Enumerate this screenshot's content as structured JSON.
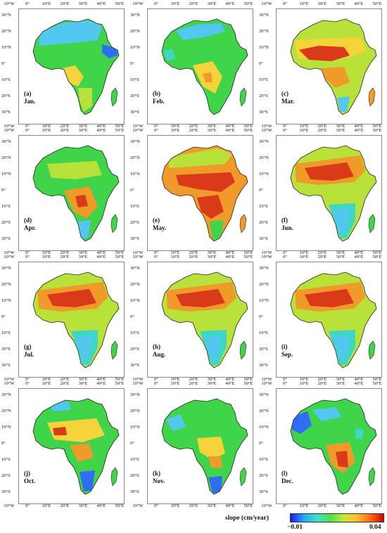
{
  "axes": {
    "lon_ticks": [
      "10°W",
      "0°",
      "10°E",
      "20°E",
      "30°E",
      "40°E",
      "50°E"
    ],
    "lat_ticks": [
      "30°N",
      "20°N",
      "10°N",
      "0°",
      "10°S",
      "20°S",
      "30°S"
    ]
  },
  "panels": [
    {
      "letter": "(a)",
      "month": "Jan.",
      "pattern": "blue-north"
    },
    {
      "letter": "(b)",
      "month": "Feb.",
      "pattern": "green"
    },
    {
      "letter": "(c)",
      "month": "Mar.",
      "pattern": "red-sahel"
    },
    {
      "letter": "(d)",
      "month": "Apr.",
      "pattern": "green-yellow"
    },
    {
      "letter": "(e)",
      "month": "May.",
      "pattern": "red-center"
    },
    {
      "letter": "(f)",
      "month": "Jun.",
      "pattern": "red-north-blue-south"
    },
    {
      "letter": "(g)",
      "month": "Jul.",
      "pattern": "red-north-blue-south"
    },
    {
      "letter": "(h)",
      "month": "Aug.",
      "pattern": "red-north-blue-south"
    },
    {
      "letter": "(i)",
      "month": "Sep.",
      "pattern": "red-north-blue-south"
    },
    {
      "letter": "(j)",
      "month": "Oct.",
      "pattern": "mixed-blue-south"
    },
    {
      "letter": "(k)",
      "month": "Nov.",
      "pattern": "green-blue-south"
    },
    {
      "letter": "(l)",
      "month": "Dec.",
      "pattern": "blue-west"
    }
  ],
  "colorbar": {
    "label": "slope (cm/year)",
    "min_label": "−0.01",
    "max_label": "0.04",
    "min": -0.01,
    "max": 0.04,
    "colors": [
      "#1a1aff",
      "#2aa6ff",
      "#3fe0c8",
      "#4ee04a",
      "#c7e83a",
      "#ffc02a",
      "#ff6a1a",
      "#d40000"
    ]
  },
  "colors": {
    "blue": "#2f6df5",
    "lightblue": "#52c8f0",
    "cyan": "#3fd6c6",
    "green": "#3fd44a",
    "yellowgreen": "#b8e23a",
    "yellow": "#f4d43a",
    "orange": "#f09a2a",
    "red": "#d83a1a"
  }
}
